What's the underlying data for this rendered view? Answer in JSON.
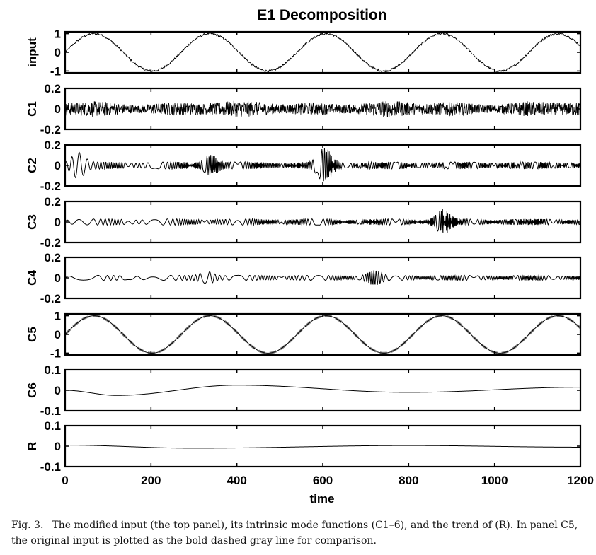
{
  "chart_data": {
    "type": "line",
    "title": "E1 Decomposition",
    "xlabel": "time",
    "xlim": [
      0,
      1200
    ],
    "xticks": [
      "0",
      "200",
      "400",
      "600",
      "800",
      "1000",
      "1200"
    ],
    "panels": [
      {
        "ylabel": "input",
        "ylim": [
          -1.1,
          1.1
        ],
        "yticks": [
          "1",
          "0",
          "-1"
        ],
        "signal": {
          "kind": "sine_plus_noise",
          "amplitude": 1.0,
          "period": 270,
          "phase": 0,
          "noise_amplitude": 0.05
        }
      },
      {
        "ylabel": "C1",
        "ylim": [
          -0.2,
          0.2
        ],
        "yticks": [
          "0.2",
          "0",
          "-0.2"
        ],
        "signal": {
          "kind": "high_frequency_noise",
          "amplitude": 0.06
        }
      },
      {
        "ylabel": "C2",
        "ylim": [
          -0.2,
          0.2
        ],
        "yticks": [
          "0.2",
          "0",
          "-0.2"
        ],
        "signal": {
          "kind": "oscillation_with_bursts",
          "amplitude": 0.035,
          "period": 14,
          "bursts": [
            {
              "t": 30,
              "amplitude": 0.1
            },
            {
              "t": 340,
              "amplitude": 0.08
            },
            {
              "t": 605,
              "amplitude": 0.14
            }
          ]
        }
      },
      {
        "ylabel": "C3",
        "ylim": [
          -0.2,
          0.2
        ],
        "yticks": [
          "0.2",
          "0",
          "-0.2"
        ],
        "signal": {
          "kind": "oscillation_with_bursts",
          "amplitude": 0.03,
          "period": 26,
          "bursts": [
            {
              "t": 880,
              "amplitude": 0.1
            }
          ]
        }
      },
      {
        "ylabel": "C4",
        "ylim": [
          -0.2,
          0.2
        ],
        "yticks": [
          "0.2",
          "0",
          "-0.2"
        ],
        "signal": {
          "kind": "oscillation_with_bursts",
          "amplitude": 0.025,
          "period": 55,
          "bursts": [
            {
              "t": 330,
              "amplitude": 0.05
            },
            {
              "t": 720,
              "amplitude": 0.05
            }
          ]
        }
      },
      {
        "ylabel": "C5",
        "ylim": [
          -1.1,
          1.1
        ],
        "yticks": [
          "1",
          "0",
          "-1"
        ],
        "signal": {
          "kind": "sine",
          "amplitude": 1.0,
          "period": 270,
          "phase": 0
        },
        "overlay": {
          "description": "original input",
          "style": "bold dashed gray",
          "amplitude": 1.0,
          "period": 270
        }
      },
      {
        "ylabel": "C6",
        "ylim": [
          -0.1,
          0.1
        ],
        "yticks": [
          "0.1",
          "0",
          "-0.1"
        ],
        "signal": {
          "kind": "slow_wave",
          "points": [
            [
              0,
              0.0
            ],
            [
              120,
              -0.025
            ],
            [
              400,
              0.025
            ],
            [
              800,
              -0.01
            ],
            [
              1200,
              0.015
            ]
          ]
        }
      },
      {
        "ylabel": "R",
        "ylim": [
          -0.1,
          0.1
        ],
        "yticks": [
          "0.1",
          "0",
          "-0.1"
        ],
        "signal": {
          "kind": "slow_wave",
          "points": [
            [
              0,
              0.005
            ],
            [
              300,
              -0.01
            ],
            [
              800,
              0.003
            ],
            [
              1200,
              -0.005
            ]
          ]
        }
      }
    ]
  },
  "caption": {
    "label": "Fig. 3.",
    "text": "The modified input (the top panel), its intrinsic mode functions (C1–6), and the trend of (R). In panel C5, the original input is plotted as the bold dashed gray line for comparison."
  }
}
